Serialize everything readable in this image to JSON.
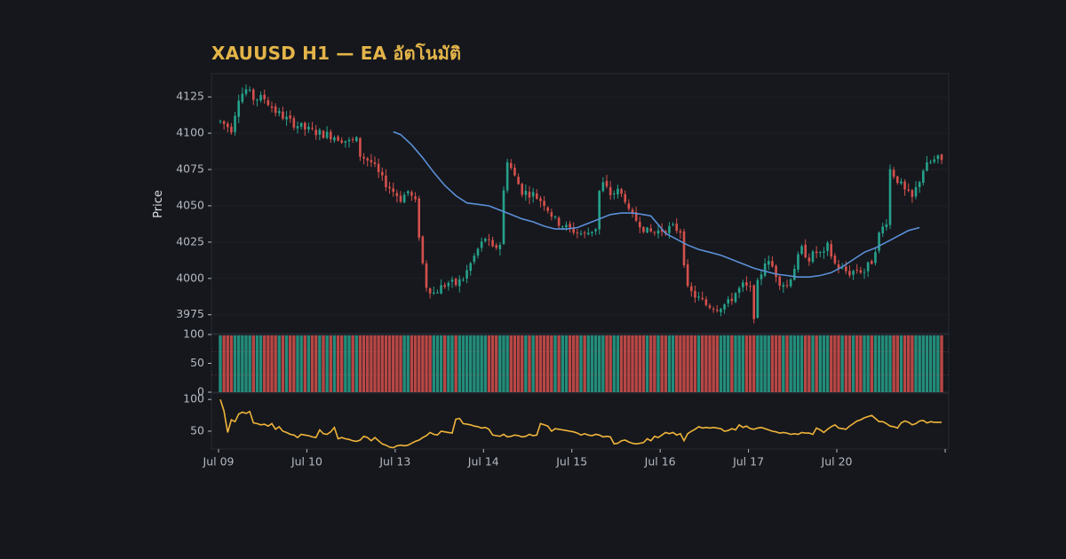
{
  "chart_data": {
    "type": "candlestick",
    "title": "XAUUSD H1 — EA อัตโนมัติ",
    "ylabel": "Price",
    "xlabel": "",
    "x_ticks": [
      "Jul 09",
      "Jul 10",
      "Jul 13",
      "Jul 14",
      "Jul 15",
      "Jul 16",
      "Jul 17",
      "Jul 20"
    ],
    "price_yticks": [
      3975,
      4000,
      4025,
      4050,
      4075,
      4100,
      4125
    ],
    "price_ylim": [
      3962,
      4141
    ],
    "x_range_hours": [
      0,
      196
    ],
    "colors": {
      "background": "#15171c",
      "panel": "#16181d",
      "up": "#26a18b",
      "down": "#d4504c",
      "ma": "#5b8fd6",
      "oscillator": "#f0b43a",
      "title": "#e3b449",
      "text": "#b3b8c2"
    },
    "anchors": [
      [
        0,
        4108
      ],
      [
        3,
        4103
      ],
      [
        5,
        4125
      ],
      [
        7,
        4130
      ],
      [
        9,
        4124
      ],
      [
        12,
        4124
      ],
      [
        15,
        4115
      ],
      [
        19,
        4108
      ],
      [
        23,
        4103
      ],
      [
        27,
        4100
      ],
      [
        31,
        4098
      ],
      [
        35,
        4094
      ],
      [
        37,
        4095
      ],
      [
        38,
        4085
      ],
      [
        41,
        4080
      ],
      [
        44,
        4068
      ],
      [
        47,
        4060
      ],
      [
        49,
        4055
      ],
      [
        51,
        4060
      ],
      [
        53,
        4052
      ],
      [
        54,
        4030
      ],
      [
        55,
        4010
      ],
      [
        56,
        3995
      ],
      [
        58,
        3990
      ],
      [
        60,
        3994
      ],
      [
        62,
        3997
      ],
      [
        64,
        3996
      ],
      [
        66,
        4000
      ],
      [
        68,
        4010
      ],
      [
        70,
        4020
      ],
      [
        72,
        4028
      ],
      [
        74,
        4020
      ],
      [
        76,
        4024
      ],
      [
        77,
        4060
      ],
      [
        78,
        4082
      ],
      [
        80,
        4070
      ],
      [
        82,
        4060
      ],
      [
        85,
        4058
      ],
      [
        88,
        4052
      ],
      [
        91,
        4040
      ],
      [
        94,
        4035
      ],
      [
        97,
        4032
      ],
      [
        99,
        4030
      ],
      [
        102,
        4035
      ],
      [
        103,
        4060
      ],
      [
        104,
        4065
      ],
      [
        106,
        4058
      ],
      [
        108,
        4060
      ],
      [
        110,
        4055
      ],
      [
        111,
        4045
      ],
      [
        114,
        4038
      ],
      [
        116,
        4032
      ],
      [
        118,
        4032
      ],
      [
        121,
        4034
      ],
      [
        123,
        4035
      ],
      [
        125,
        4033
      ],
      [
        126,
        4012
      ],
      [
        127,
        3992
      ],
      [
        129,
        3988
      ],
      [
        132,
        3982
      ],
      [
        135,
        3980
      ],
      [
        138,
        3983
      ],
      [
        140,
        3990
      ],
      [
        142,
        3995
      ],
      [
        144,
        3992
      ],
      [
        145,
        3975
      ],
      [
        146,
        3996
      ],
      [
        148,
        4012
      ],
      [
        150,
        4008
      ],
      [
        152,
        3998
      ],
      [
        154,
        3995
      ],
      [
        156,
        4008
      ],
      [
        158,
        4020
      ],
      [
        160,
        4014
      ],
      [
        162,
        4018
      ],
      [
        164,
        4016
      ],
      [
        165,
        4022
      ],
      [
        167,
        4010
      ],
      [
        169,
        4006
      ],
      [
        171,
        4004
      ],
      [
        173,
        4006
      ],
      [
        175,
        4005
      ],
      [
        177,
        4012
      ],
      [
        179,
        4030
      ],
      [
        181,
        4040
      ],
      [
        182,
        4075
      ],
      [
        184,
        4068
      ],
      [
        186,
        4060
      ],
      [
        188,
        4055
      ],
      [
        190,
        4068
      ],
      [
        191,
        4075
      ],
      [
        193,
        4080
      ],
      [
        195,
        4082
      ],
      [
        196,
        4081
      ]
    ],
    "ma_series": [
      [
        47,
        4101
      ],
      [
        49,
        4099
      ],
      [
        52,
        4092
      ],
      [
        55,
        4083
      ],
      [
        58,
        4073
      ],
      [
        61,
        4064
      ],
      [
        64,
        4057
      ],
      [
        67,
        4052
      ],
      [
        70,
        4051
      ],
      [
        73,
        4050
      ],
      [
        76,
        4047
      ],
      [
        79,
        4044
      ],
      [
        82,
        4041
      ],
      [
        85,
        4039
      ],
      [
        88,
        4036
      ],
      [
        91,
        4034
      ],
      [
        94,
        4034
      ],
      [
        97,
        4035
      ],
      [
        100,
        4038
      ],
      [
        103,
        4041
      ],
      [
        106,
        4044
      ],
      [
        109,
        4045
      ],
      [
        112,
        4045
      ],
      [
        115,
        4044
      ],
      [
        117,
        4043
      ],
      [
        119,
        4037
      ],
      [
        121,
        4031
      ],
      [
        124,
        4027
      ],
      [
        127,
        4023
      ],
      [
        130,
        4020
      ],
      [
        133,
        4018
      ],
      [
        136,
        4016
      ],
      [
        139,
        4013
      ],
      [
        142,
        4010
      ],
      [
        145,
        4007
      ],
      [
        148,
        4005
      ],
      [
        151,
        4003
      ],
      [
        154,
        4002
      ],
      [
        157,
        4001
      ],
      [
        160,
        4001
      ],
      [
        163,
        4002
      ],
      [
        166,
        4004
      ],
      [
        169,
        4008
      ],
      [
        172,
        4013
      ],
      [
        175,
        4018
      ],
      [
        178,
        4021
      ],
      [
        181,
        4025
      ],
      [
        184,
        4029
      ],
      [
        187,
        4033
      ],
      [
        190,
        4035
      ]
    ],
    "volume_panel": {
      "yticks": [
        0,
        50,
        100
      ],
      "ylim": [
        0,
        100
      ]
    },
    "oscillator_panel": {
      "yticks": [
        50,
        100
      ],
      "ylim": [
        22,
        110
      ],
      "values": [
        [
          0,
          100
        ],
        [
          1,
          82
        ],
        [
          2,
          48
        ],
        [
          3,
          68
        ],
        [
          4,
          65
        ],
        [
          5,
          77
        ],
        [
          6,
          80
        ],
        [
          7,
          78
        ],
        [
          8,
          81
        ],
        [
          9,
          63
        ],
        [
          10,
          62
        ],
        [
          11,
          60
        ],
        [
          12,
          61
        ],
        [
          13,
          58
        ],
        [
          14,
          62
        ],
        [
          15,
          53
        ],
        [
          16,
          57
        ],
        [
          17,
          50
        ],
        [
          18,
          48
        ],
        [
          19,
          45
        ],
        [
          20,
          44
        ],
        [
          21,
          40
        ],
        [
          22,
          45
        ],
        [
          23,
          44
        ],
        [
          24,
          43
        ],
        [
          25,
          41
        ],
        [
          26,
          40
        ],
        [
          27,
          52
        ],
        [
          28,
          46
        ],
        [
          29,
          45
        ],
        [
          30,
          49
        ],
        [
          31,
          56
        ],
        [
          32,
          38
        ],
        [
          33,
          40
        ],
        [
          34,
          38
        ],
        [
          35,
          37
        ],
        [
          36,
          35
        ],
        [
          37,
          34
        ],
        [
          38,
          36
        ],
        [
          39,
          42
        ],
        [
          40,
          40
        ],
        [
          41,
          35
        ],
        [
          42,
          40
        ],
        [
          43,
          35
        ],
        [
          44,
          30
        ],
        [
          45,
          28
        ],
        [
          46,
          25
        ],
        [
          47,
          24
        ],
        [
          48,
          27
        ],
        [
          49,
          28
        ],
        [
          50,
          27
        ],
        [
          51,
          28
        ],
        [
          52,
          31
        ],
        [
          53,
          34
        ],
        [
          54,
          36
        ],
        [
          55,
          40
        ],
        [
          56,
          43
        ],
        [
          57,
          48
        ],
        [
          58,
          45
        ],
        [
          59,
          44
        ],
        [
          60,
          50
        ],
        [
          61,
          49
        ],
        [
          62,
          48
        ],
        [
          63,
          47
        ],
        [
          64,
          69
        ],
        [
          65,
          70
        ],
        [
          66,
          62
        ],
        [
          67,
          61
        ],
        [
          68,
          60
        ],
        [
          69,
          58
        ],
        [
          70,
          57
        ],
        [
          71,
          55
        ],
        [
          72,
          56
        ],
        [
          73,
          53
        ],
        [
          74,
          44
        ],
        [
          75,
          43
        ],
        [
          76,
          42
        ],
        [
          77,
          45
        ],
        [
          78,
          41
        ],
        [
          79,
          42
        ],
        [
          80,
          44
        ],
        [
          81,
          43
        ],
        [
          82,
          41
        ],
        [
          83,
          42
        ],
        [
          84,
          45
        ],
        [
          85,
          43
        ],
        [
          86,
          44
        ],
        [
          87,
          62
        ],
        [
          88,
          60
        ],
        [
          89,
          58
        ],
        [
          90,
          50
        ],
        [
          91,
          54
        ],
        [
          92,
          53
        ],
        [
          93,
          52
        ],
        [
          94,
          51
        ],
        [
          95,
          50
        ],
        [
          96,
          49
        ],
        [
          97,
          47
        ],
        [
          98,
          44
        ],
        [
          99,
          46
        ],
        [
          100,
          44
        ],
        [
          101,
          43
        ],
        [
          102,
          45
        ],
        [
          103,
          44
        ],
        [
          104,
          41
        ],
        [
          105,
          42
        ],
        [
          106,
          41
        ],
        [
          107,
          30
        ],
        [
          108,
          31
        ],
        [
          109,
          35
        ],
        [
          110,
          36
        ],
        [
          111,
          33
        ],
        [
          112,
          31
        ],
        [
          113,
          30
        ],
        [
          114,
          31
        ],
        [
          115,
          32
        ],
        [
          116,
          38
        ],
        [
          117,
          35
        ],
        [
          118,
          42
        ],
        [
          119,
          40
        ],
        [
          120,
          44
        ],
        [
          121,
          48
        ],
        [
          122,
          46
        ],
        [
          123,
          48
        ],
        [
          124,
          44
        ],
        [
          125,
          46
        ],
        [
          126,
          35
        ],
        [
          127,
          46
        ],
        [
          128,
          50
        ],
        [
          129,
          53
        ],
        [
          130,
          57
        ],
        [
          131,
          55
        ],
        [
          132,
          56
        ],
        [
          133,
          55
        ],
        [
          134,
          56
        ],
        [
          135,
          55
        ],
        [
          136,
          54
        ],
        [
          137,
          50
        ],
        [
          138,
          51
        ],
        [
          139,
          54
        ],
        [
          140,
          52
        ],
        [
          141,
          60
        ],
        [
          142,
          56
        ],
        [
          143,
          58
        ],
        [
          144,
          54
        ],
        [
          145,
          53
        ],
        [
          146,
          55
        ],
        [
          147,
          56
        ],
        [
          148,
          54
        ],
        [
          149,
          52
        ],
        [
          150,
          50
        ],
        [
          151,
          49
        ],
        [
          152,
          47
        ],
        [
          153,
          48
        ],
        [
          154,
          47
        ],
        [
          155,
          45
        ],
        [
          156,
          46
        ],
        [
          157,
          45
        ],
        [
          158,
          48
        ],
        [
          159,
          47
        ],
        [
          160,
          47
        ],
        [
          161,
          45
        ],
        [
          162,
          55
        ],
        [
          163,
          52
        ],
        [
          164,
          48
        ],
        [
          165,
          53
        ],
        [
          166,
          57
        ],
        [
          167,
          60
        ],
        [
          168,
          55
        ],
        [
          169,
          54
        ],
        [
          170,
          53
        ],
        [
          171,
          58
        ],
        [
          172,
          62
        ],
        [
          173,
          66
        ],
        [
          174,
          68
        ],
        [
          175,
          71
        ],
        [
          176,
          73
        ],
        [
          177,
          75
        ],
        [
          178,
          70
        ],
        [
          179,
          65
        ],
        [
          180,
          65
        ],
        [
          181,
          62
        ],
        [
          182,
          58
        ],
        [
          183,
          57
        ],
        [
          184,
          55
        ],
        [
          185,
          63
        ],
        [
          186,
          66
        ],
        [
          187,
          64
        ],
        [
          188,
          60
        ],
        [
          189,
          62
        ],
        [
          190,
          66
        ],
        [
          191,
          67
        ],
        [
          192,
          63
        ],
        [
          193,
          65
        ],
        [
          194,
          64
        ],
        [
          195,
          64
        ],
        [
          196,
          64
        ]
      ]
    }
  }
}
